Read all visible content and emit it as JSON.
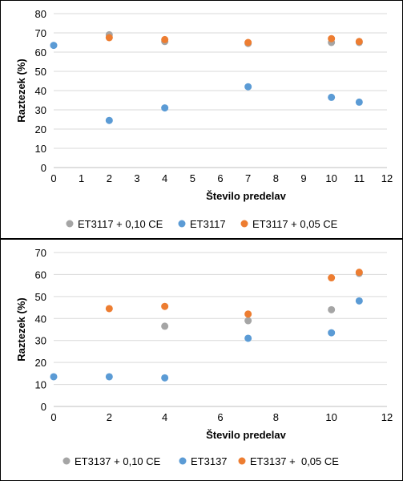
{
  "colors": {
    "gray": "#a5a5a5",
    "blue": "#5b9bd5",
    "orange": "#ed7d31",
    "grid": "#d9d9d9"
  },
  "chart_data": [
    {
      "type": "scatter",
      "xlabel": "Število predelav",
      "ylabel": "Raztezek (%)",
      "xlim": [
        0,
        12
      ],
      "ylim": [
        0,
        80
      ],
      "xticks": [
        "0",
        "1",
        "2",
        "3",
        "4",
        "5",
        "6",
        "7",
        "8",
        "9",
        "10",
        "11",
        "12"
      ],
      "yticks": [
        "0",
        "10",
        "20",
        "30",
        "40",
        "50",
        "60",
        "70",
        "80"
      ],
      "grid": "horizontal",
      "legend": "bottom",
      "series": [
        {
          "name": "ET3117 + 0,10 CE",
          "color": "#a5a5a5",
          "x": [
            2,
            4,
            7,
            10,
            11
          ],
          "y": [
            69,
            65.5,
            64.5,
            65,
            65
          ]
        },
        {
          "name": "ET3117",
          "color": "#5b9bd5",
          "x": [
            0,
            2,
            4,
            7,
            10,
            11
          ],
          "y": [
            63.5,
            24.5,
            31,
            42,
            36.5,
            34
          ]
        },
        {
          "name": "ET3117 + 0,05 CE",
          "color": "#ed7d31",
          "x": [
            2,
            4,
            7,
            10,
            11
          ],
          "y": [
            67.5,
            66.5,
            65,
            67,
            65.5
          ]
        }
      ]
    },
    {
      "type": "scatter",
      "xlabel": "Število predelav",
      "ylabel": "Raztezek (%)",
      "xlim": [
        0,
        12
      ],
      "ylim": [
        0,
        70
      ],
      "xticks": [
        "0",
        "2",
        "4",
        "6",
        "8",
        "10",
        "12"
      ],
      "yticks": [
        "0",
        "10",
        "20",
        "30",
        "40",
        "50",
        "60",
        "70"
      ],
      "grid": "horizontal",
      "legend": "bottom",
      "series": [
        {
          "name": "ET3137 + 0,10 CE",
          "color": "#a5a5a5",
          "x": [
            4,
            7,
            10,
            11
          ],
          "y": [
            36.5,
            39,
            44,
            60.5
          ]
        },
        {
          "name": "ET3137",
          "color": "#5b9bd5",
          "x": [
            0,
            2,
            4,
            7,
            10,
            11
          ],
          "y": [
            13.5,
            13.5,
            13,
            31,
            33.5,
            48
          ]
        },
        {
          "name": "ET3137 +  0,05 CE",
          "color": "#ed7d31",
          "x": [
            2,
            4,
            7,
            10,
            11
          ],
          "y": [
            44.5,
            45.5,
            42,
            58.5,
            61
          ]
        }
      ]
    }
  ]
}
